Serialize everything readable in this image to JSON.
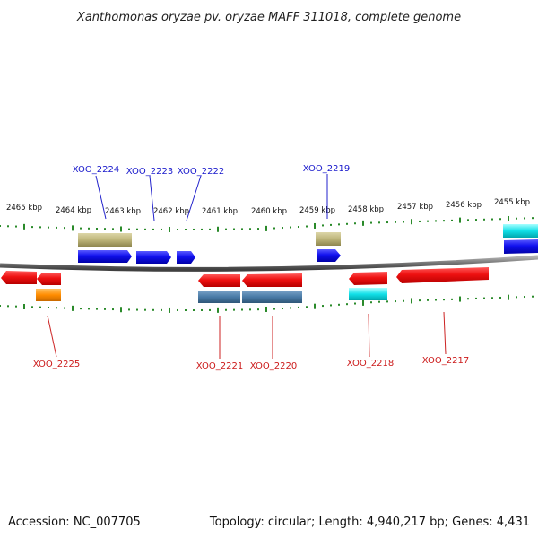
{
  "title": "Xanthomonas oryzae pv. oryzae MAFF 311018, complete genome",
  "accession": "Accession: NC_007705",
  "summary": "Topology: circular; Length: 4,940,217 bp; Genes: 4,431",
  "colors": {
    "backbone": "#808080",
    "tick": "#2a8a2a",
    "label_top": "#1a1acc",
    "label_bottom": "#cc1a1a",
    "red": "#ee1111",
    "blue": "#1111ee",
    "khaki": "#bdb57a",
    "orange": "#ff8c00",
    "steel": "#4a7ba7",
    "cyan": "#11e0e8"
  },
  "kbp_labels": [
    "2465 kbp",
    "2464 kbp",
    "2463 kbp",
    "2462 kbp",
    "2461 kbp",
    "2460 kbp",
    "2459 kbp",
    "2458 kbp",
    "2457 kbp",
    "2456 kbp",
    "2455 kbp"
  ],
  "gene_labels_top": [
    "XOO_2224",
    "XOO_2223",
    "XOO_2222",
    "XOO_2219"
  ],
  "gene_labels_bottom": [
    "XOO_2225",
    "XOO_2221",
    "XOO_2220",
    "XOO_2218",
    "XOO_2217"
  ],
  "features": {
    "blue_strand": [
      "blue",
      "blue",
      "blue",
      "blue",
      "blue"
    ],
    "khaki_row": [
      "khaki",
      "khaki",
      "cyan"
    ],
    "red_strand": [
      "red",
      "red",
      "red",
      "red",
      "red",
      "red"
    ],
    "lower_row": [
      "orange",
      "steel",
      "steel",
      "cyan"
    ]
  }
}
